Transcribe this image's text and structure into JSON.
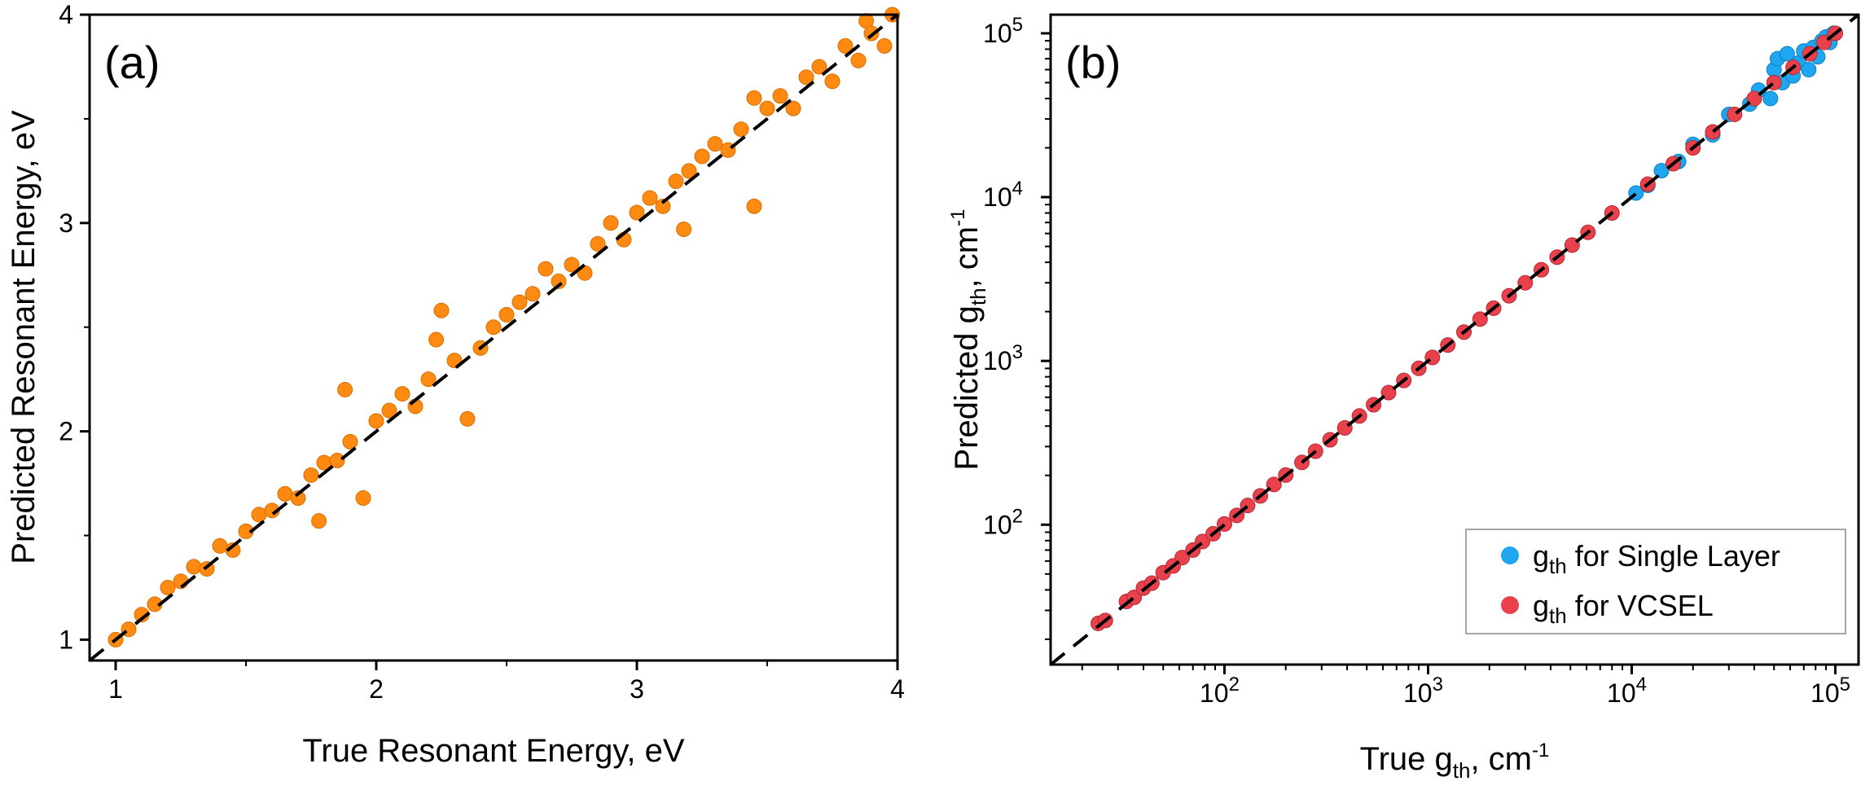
{
  "colors": {
    "orange": "#ff8a12",
    "blue": "#1ea6f0",
    "red": "#e8414c",
    "diagonal": "#000000"
  },
  "chart_data": [
    {
      "type": "scatter",
      "panel_label": "(a)",
      "xlabel": "True Resonant Energy, eV",
      "ylabel": "Predicted Resonant Energy, eV",
      "xlim": [
        0.9,
        4.0
      ],
      "ylim": [
        0.9,
        4.0
      ],
      "x_ticks": [
        "1",
        "2",
        "3",
        "4"
      ],
      "y_ticks": [
        "1",
        "2",
        "3",
        "4"
      ],
      "grid": false,
      "reference_line": "y = x (dashed black)",
      "series": [
        {
          "color": "#ff8a12",
          "points": [
            [
              1.0,
              1.0
            ],
            [
              1.05,
              1.05
            ],
            [
              1.1,
              1.12
            ],
            [
              1.15,
              1.17
            ],
            [
              1.2,
              1.25
            ],
            [
              1.25,
              1.28
            ],
            [
              1.3,
              1.35
            ],
            [
              1.35,
              1.34
            ],
            [
              1.4,
              1.45
            ],
            [
              1.45,
              1.43
            ],
            [
              1.5,
              1.52
            ],
            [
              1.55,
              1.6
            ],
            [
              1.6,
              1.62
            ],
            [
              1.65,
              1.7
            ],
            [
              1.7,
              1.68
            ],
            [
              1.75,
              1.79
            ],
            [
              1.78,
              1.57
            ],
            [
              1.8,
              1.85
            ],
            [
              1.85,
              1.86
            ],
            [
              1.88,
              2.2
            ],
            [
              1.9,
              1.95
            ],
            [
              1.95,
              1.68
            ],
            [
              2.0,
              2.05
            ],
            [
              2.05,
              2.1
            ],
            [
              2.1,
              2.18
            ],
            [
              2.15,
              2.12
            ],
            [
              2.2,
              2.25
            ],
            [
              2.23,
              2.44
            ],
            [
              2.25,
              2.58
            ],
            [
              2.3,
              2.34
            ],
            [
              2.35,
              2.06
            ],
            [
              2.4,
              2.4
            ],
            [
              2.45,
              2.5
            ],
            [
              2.5,
              2.56
            ],
            [
              2.55,
              2.62
            ],
            [
              2.6,
              2.66
            ],
            [
              2.65,
              2.78
            ],
            [
              2.7,
              2.72
            ],
            [
              2.75,
              2.8
            ],
            [
              2.8,
              2.76
            ],
            [
              2.85,
              2.9
            ],
            [
              2.9,
              3.0
            ],
            [
              2.95,
              2.92
            ],
            [
              3.0,
              3.05
            ],
            [
              3.05,
              3.12
            ],
            [
              3.1,
              3.08
            ],
            [
              3.15,
              3.2
            ],
            [
              3.18,
              2.97
            ],
            [
              3.2,
              3.25
            ],
            [
              3.25,
              3.32
            ],
            [
              3.3,
              3.38
            ],
            [
              3.35,
              3.35
            ],
            [
              3.4,
              3.45
            ],
            [
              3.45,
              3.08
            ],
            [
              3.45,
              3.6
            ],
            [
              3.5,
              3.55
            ],
            [
              3.55,
              3.61
            ],
            [
              3.6,
              3.55
            ],
            [
              3.65,
              3.7
            ],
            [
              3.7,
              3.75
            ],
            [
              3.75,
              3.68
            ],
            [
              3.8,
              3.85
            ],
            [
              3.85,
              3.78
            ],
            [
              3.88,
              3.97
            ],
            [
              3.9,
              3.91
            ],
            [
              3.95,
              3.85
            ],
            [
              3.98,
              4.0
            ]
          ]
        }
      ]
    },
    {
      "type": "scatter",
      "panel_label": "(b)",
      "xlabel": "True g_th, cm^-1",
      "ylabel": "Predicted g_th, cm^-1",
      "xscale": "log",
      "yscale": "log",
      "xlim": [
        14,
        130000
      ],
      "ylim": [
        14,
        130000
      ],
      "x_ticks": [
        100,
        1000,
        10000,
        100000
      ],
      "y_ticks": [
        100,
        1000,
        10000,
        100000
      ],
      "grid": false,
      "reference_line": "y = x (dashed black)",
      "legend_position": "bottom-right",
      "series": [
        {
          "name": "g_th for Single Layer",
          "color": "#1ea6f0",
          "points": [
            [
              10500,
              10600
            ],
            [
              12000,
              11800
            ],
            [
              14000,
              14500
            ],
            [
              17000,
              16500
            ],
            [
              20000,
              21000
            ],
            [
              25000,
              24000
            ],
            [
              30000,
              32000
            ],
            [
              38000,
              37000
            ],
            [
              42000,
              45000
            ],
            [
              48000,
              40000
            ],
            [
              50000,
              60000
            ],
            [
              52000,
              70000
            ],
            [
              55000,
              50000
            ],
            [
              58000,
              75000
            ],
            [
              62000,
              55000
            ],
            [
              66000,
              66000
            ],
            [
              70000,
              78000
            ],
            [
              74000,
              60000
            ],
            [
              78000,
              82000
            ],
            [
              82000,
              72000
            ],
            [
              86000,
              90000
            ],
            [
              90000,
              95000
            ],
            [
              94000,
              88000
            ],
            [
              98000,
              100000
            ]
          ]
        },
        {
          "name": "g_th for VCSEL",
          "color": "#e8414c",
          "points": [
            [
              24,
              25
            ],
            [
              26,
              26
            ],
            [
              33,
              34
            ],
            [
              36,
              36
            ],
            [
              40,
              41
            ],
            [
              44,
              44
            ],
            [
              50,
              51
            ],
            [
              56,
              56
            ],
            [
              62,
              63
            ],
            [
              70,
              70
            ],
            [
              78,
              79
            ],
            [
              88,
              88
            ],
            [
              100,
              101
            ],
            [
              115,
              114
            ],
            [
              130,
              131
            ],
            [
              150,
              150
            ],
            [
              175,
              176
            ],
            [
              200,
              201
            ],
            [
              240,
              240
            ],
            [
              280,
              281
            ],
            [
              330,
              330
            ],
            [
              390,
              390
            ],
            [
              460,
              461
            ],
            [
              540,
              540
            ],
            [
              640,
              641
            ],
            [
              760,
              760
            ],
            [
              900,
              901
            ],
            [
              1050,
              1050
            ],
            [
              1250,
              1250
            ],
            [
              1500,
              1500
            ],
            [
              1800,
              1800
            ],
            [
              2100,
              2100
            ],
            [
              2500,
              2500
            ],
            [
              3000,
              3000
            ],
            [
              3600,
              3600
            ],
            [
              4300,
              4300
            ],
            [
              5100,
              5100
            ],
            [
              6100,
              6100
            ],
            [
              8000,
              8000
            ],
            [
              12000,
              12000
            ],
            [
              16000,
              16000
            ],
            [
              20000,
              20000
            ],
            [
              25000,
              25000
            ],
            [
              32000,
              32000
            ],
            [
              40000,
              40000
            ],
            [
              50000,
              50000
            ],
            [
              62000,
              62000
            ],
            [
              75000,
              75000
            ],
            [
              88000,
              88000
            ],
            [
              100000,
              100000
            ]
          ]
        }
      ]
    }
  ],
  "labels": {
    "a": {
      "xlabel": "True Resonant Energy, eV",
      "ylabel": "Predicted Resonant Energy, eV",
      "x_ticks": [
        "1",
        "2",
        "3",
        "4"
      ],
      "y_ticks": [
        "1",
        "2",
        "3",
        "4"
      ]
    },
    "b": {
      "x_main": "True g",
      "y_main": "Predicted g",
      "sub": "th",
      "unit": ", cm",
      "sup": "-1",
      "tick_base": "10",
      "tick_exps": [
        "2",
        "3",
        "4",
        "5"
      ],
      "legend_prefix": "g",
      "legend_sub": "th",
      "legend_suffix_1": " for Single Layer",
      "legend_suffix_2": " for VCSEL"
    }
  }
}
